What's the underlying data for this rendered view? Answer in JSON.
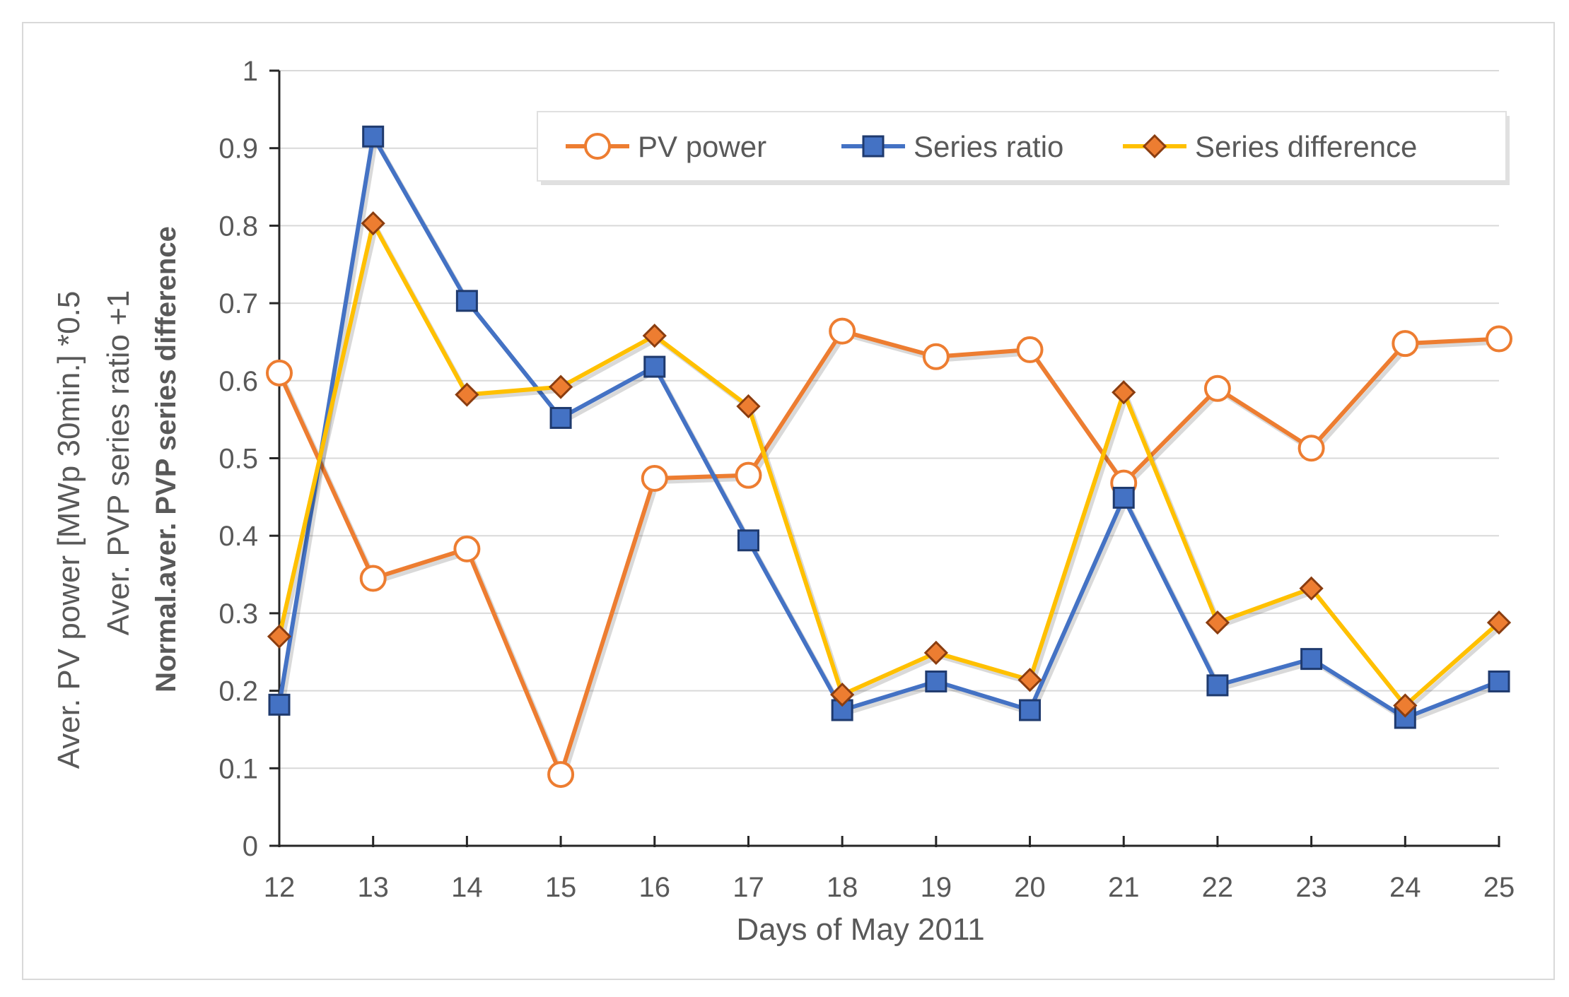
{
  "chart_data": {
    "type": "line",
    "title": "",
    "xlabel": "Days of May 2011",
    "ylabel_lines": [
      "Aver. PV power [MWp 30min.] *0.5",
      "Aver. PVP series ratio +1",
      "Normal.aver. PVP series difference"
    ],
    "categories": [
      "12",
      "13",
      "14",
      "15",
      "16",
      "17",
      "18",
      "19",
      "20",
      "21",
      "22",
      "23",
      "24",
      "25"
    ],
    "ylim": [
      0,
      1
    ],
    "yticks": [
      "0",
      "0.1",
      "0.2",
      "0.3",
      "0.4",
      "0.5",
      "0.6",
      "0.7",
      "0.8",
      "0.9",
      "1"
    ],
    "grid": true,
    "legend_position": "top-right",
    "series": [
      {
        "name": "PV power",
        "color": "#ED7D31",
        "marker": "circle",
        "marker_fill": "#FFFFFF",
        "values": [
          0.61,
          0.345,
          0.383,
          0.092,
          0.474,
          0.478,
          0.664,
          0.631,
          0.64,
          0.468,
          0.59,
          0.513,
          0.648,
          0.654
        ]
      },
      {
        "name": "Series ratio",
        "color": "#4472C4",
        "marker": "square",
        "marker_fill": "#4472C4",
        "values": [
          0.182,
          0.915,
          0.703,
          0.552,
          0.618,
          0.394,
          0.175,
          0.212,
          0.175,
          0.449,
          0.207,
          0.241,
          0.165,
          0.212
        ]
      },
      {
        "name": "Series difference",
        "color": "#FFC000",
        "marker": "diamond",
        "marker_fill": "#ED7D31",
        "values": [
          0.27,
          0.803,
          0.582,
          0.592,
          0.658,
          0.567,
          0.195,
          0.249,
          0.214,
          0.585,
          0.288,
          0.332,
          0.181,
          0.288
        ]
      }
    ]
  }
}
